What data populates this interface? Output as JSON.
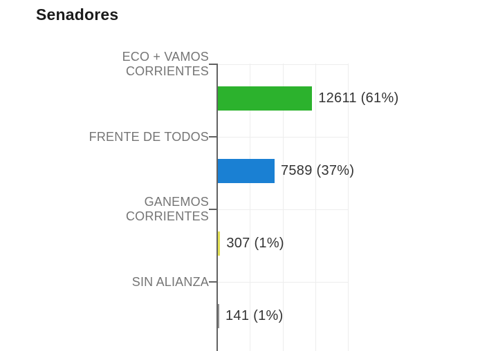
{
  "title": "Senadores",
  "chart_data": {
    "type": "bar",
    "orientation": "horizontal",
    "title": "Senadores",
    "categories": [
      "ECO + VAMOS CORRIENTES",
      "FRENTE DE TODOS",
      "GANEMOS CORRIENTES",
      "SIN ALIANZA"
    ],
    "category_label_lines": [
      [
        "ECO + VAMOS",
        "CORRIENTES"
      ],
      [
        "FRENTE DE TODOS"
      ],
      [
        "GANEMOS",
        "CORRIENTES"
      ],
      [
        "SIN ALIANZA"
      ]
    ],
    "values": [
      12611,
      7589,
      307,
      141
    ],
    "percents": [
      61,
      37,
      1,
      1
    ],
    "value_labels": [
      "12611 (61%)",
      "7589 (37%)",
      "307 (1%)",
      "141 (1%)"
    ],
    "bar_colors": [
      "#2cb22d",
      "#1a80d3",
      "#e2e054",
      "#8e8e8e"
    ],
    "xlim": [
      0,
      17500
    ],
    "grid": true,
    "legend": "none",
    "value_label_position": "right-of-bar",
    "note": "bottom of plot area cut off at image edge"
  },
  "colors": {
    "background": "#ffffff",
    "axis": "#616161",
    "gridline": "#ededed",
    "category_label": "#757575",
    "value_label": "#333333",
    "title": "#1b1b1b"
  }
}
